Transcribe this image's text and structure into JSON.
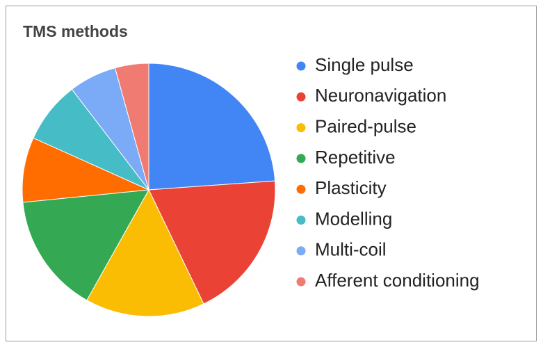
{
  "chart_data": {
    "type": "pie",
    "title": "TMS methods",
    "categories": [
      "Single pulse",
      "Neuronavigation",
      "Paired-pulse",
      "Repetitive",
      "Plasticity",
      "Modelling",
      "Multi-coil",
      "Afferent conditioning"
    ],
    "values": [
      23.9,
      19,
      15.3,
      15.3,
      8.3,
      7.9,
      6.1,
      4.3
    ],
    "colors": [
      "#4285f4",
      "#ea4335",
      "#fbbc04",
      "#34a853",
      "#ff6d01",
      "#46bdc6",
      "#7baaf7",
      "#f07b72"
    ],
    "legend": "right"
  }
}
